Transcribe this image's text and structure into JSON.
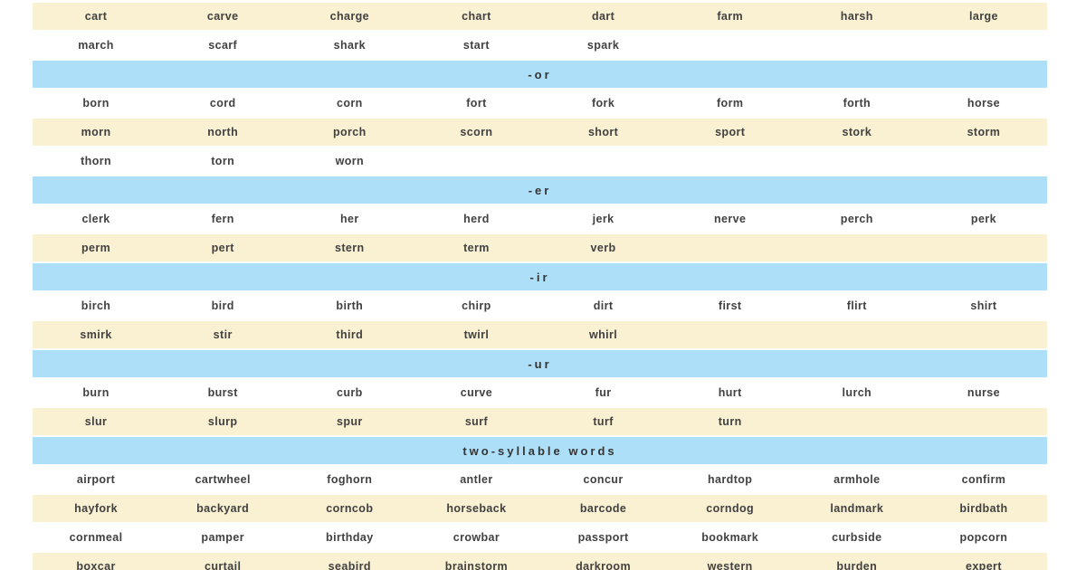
{
  "colors": {
    "row_cream": "#faf0d2",
    "row_white": "#ffffff",
    "header_blue": "#aedff9",
    "text": "#414141"
  },
  "table": {
    "columns": 8,
    "sections": [
      {
        "header": null,
        "rows": [
          {
            "fill": "cream",
            "words": [
              "cart",
              "carve",
              "charge",
              "chart",
              "dart",
              "farm",
              "harsh",
              "large"
            ]
          },
          {
            "fill": "white",
            "words": [
              "march",
              "scarf",
              "shark",
              "start",
              "spark",
              "",
              "",
              ""
            ]
          }
        ]
      },
      {
        "header": "-or",
        "rows": [
          {
            "fill": "white",
            "words": [
              "born",
              "cord",
              "corn",
              "fort",
              "fork",
              "form",
              "forth",
              "horse"
            ]
          },
          {
            "fill": "cream",
            "words": [
              "morn",
              "north",
              "porch",
              "scorn",
              "short",
              "sport",
              "stork",
              "storm"
            ]
          },
          {
            "fill": "white",
            "words": [
              "thorn",
              "torn",
              "worn",
              "",
              "",
              "",
              "",
              ""
            ]
          }
        ]
      },
      {
        "header": "-er",
        "rows": [
          {
            "fill": "white",
            "words": [
              "clerk",
              "fern",
              "her",
              "herd",
              "jerk",
              "nerve",
              "perch",
              "perk"
            ]
          },
          {
            "fill": "cream",
            "words": [
              "perm",
              "pert",
              "stern",
              "term",
              "verb",
              "",
              "",
              ""
            ]
          }
        ]
      },
      {
        "header": "-ir",
        "rows": [
          {
            "fill": "white",
            "words": [
              "birch",
              "bird",
              "birth",
              "chirp",
              "dirt",
              "first",
              "flirt",
              "shirt"
            ]
          },
          {
            "fill": "cream",
            "words": [
              "smirk",
              "stir",
              "third",
              "twirl",
              "whirl",
              "",
              "",
              ""
            ]
          }
        ]
      },
      {
        "header": "-ur",
        "rows": [
          {
            "fill": "white",
            "words": [
              "burn",
              "burst",
              "curb",
              "curve",
              "fur",
              "hurt",
              "lurch",
              "nurse"
            ]
          },
          {
            "fill": "cream",
            "words": [
              "slur",
              "slurp",
              "spur",
              "surf",
              "turf",
              "turn",
              "",
              ""
            ]
          }
        ]
      },
      {
        "header": "two-syllable words",
        "rows": [
          {
            "fill": "white",
            "words": [
              "airport",
              "cartwheel",
              "foghorn",
              "antler",
              "concur",
              "hardtop",
              "armhole",
              "confirm"
            ]
          },
          {
            "fill": "cream",
            "words": [
              "hayfork",
              "backyard",
              "corncob",
              "horseback",
              "barcode",
              "corndog",
              "landmark",
              "birdbath"
            ]
          },
          {
            "fill": "white",
            "words": [
              "cornmeal",
              "pamper",
              "birthday",
              "crowbar",
              "passport",
              "bookmark",
              "curbside",
              "popcorn"
            ]
          },
          {
            "fill": "cream",
            "words": [
              "boxcar",
              "curtail",
              "seabird",
              "brainstorm",
              "darkroom",
              "western",
              "burden",
              "expert"
            ]
          }
        ]
      }
    ]
  }
}
